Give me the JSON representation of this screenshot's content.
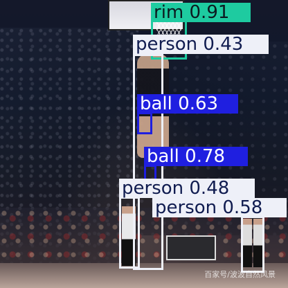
{
  "scene": {
    "background": "basketball-arena-dunk-contest",
    "watermark": "百家号/波波自然风景"
  },
  "detections": [
    {
      "id": "rim",
      "label": "rim",
      "score": "0.91",
      "color": "#1ecba0"
    },
    {
      "id": "person1",
      "label": "person",
      "score": "0.43",
      "color": "#ffffff"
    },
    {
      "id": "ball1",
      "label": "ball",
      "score": "0.63",
      "color": "#1f1fe0"
    },
    {
      "id": "ball2",
      "label": "ball",
      "score": "0.78",
      "color": "#1f1fe0"
    },
    {
      "id": "person2",
      "label": "person",
      "score": "0.48",
      "color": "#ffffff"
    },
    {
      "id": "person3",
      "label": "person",
      "score": "0.58",
      "color": "#ffffff"
    }
  ]
}
